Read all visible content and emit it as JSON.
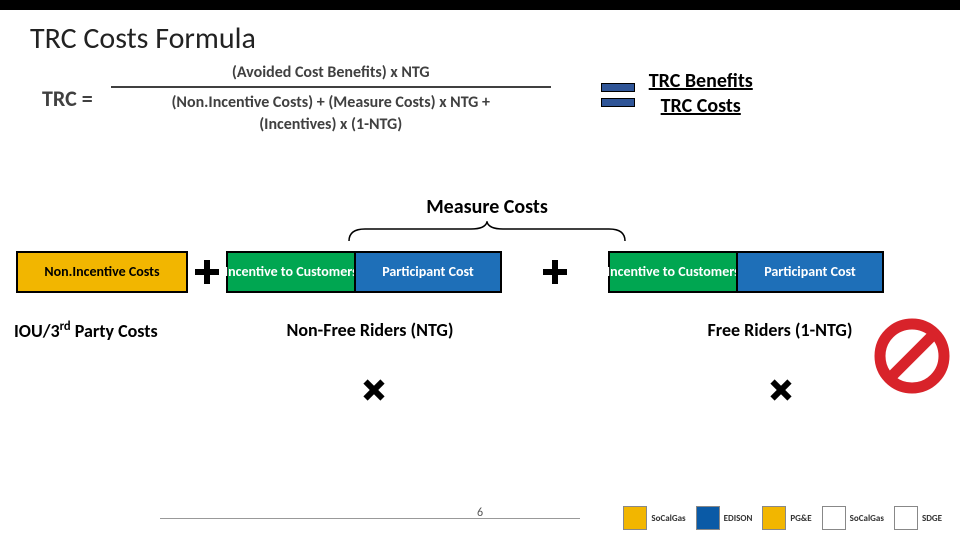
{
  "title": "TRC Costs Formula",
  "formula": {
    "lhs": "TRC =",
    "numerator": "(Avoided Cost Benefits) x NTG",
    "denominator_line1": "(Non.Incentive Costs)  +  (Measure Costs) x NTG  +",
    "denominator_line2": "(Incentives) x (1-NTG)"
  },
  "ratio": {
    "top": "TRC Benefits",
    "bottom": "TRC Costs"
  },
  "measure_label": "Measure Costs",
  "boxes": {
    "nonincentive": "Non.Incentive Costs",
    "incentive": "Incentive to Customers",
    "participant": "Participant Cost"
  },
  "row_labels": {
    "iou": "IOU/3",
    "iou_sup": "rd",
    "iou_tail": " Party Costs",
    "nfr": "Non-Free Riders (NTG)",
    "fr": "Free Riders (1-NTG)"
  },
  "page_number": "6",
  "style": {
    "colors": {
      "yellow": "#f2b600",
      "green": "#00a651",
      "blue": "#1e6fb8",
      "equals_fill": "#2f5597",
      "prohibit": "#d8232a",
      "text_gray": "#404040"
    },
    "box_border_width": 2,
    "title_fontsize": 30,
    "formula_fontsize": 16,
    "label_fontsize": 18,
    "plus_size": 26,
    "mult_size": 24,
    "brace_width": 280
  },
  "logos": [
    {
      "name": "SoCalGas",
      "fg": "#0a5aa6",
      "bg": "#f2b600"
    },
    {
      "name": "EDISON",
      "fg": "#ffffff",
      "bg": "#0a5aa6"
    },
    {
      "name": "PG&E",
      "fg": "#0a5aa6",
      "bg": "#f2b600"
    },
    {
      "name": "SoCalGas",
      "fg": "#0a5aa6",
      "bg": "#ffffff"
    },
    {
      "name": "SDGE",
      "fg": "#d8232a",
      "bg": "#ffffff"
    }
  ]
}
